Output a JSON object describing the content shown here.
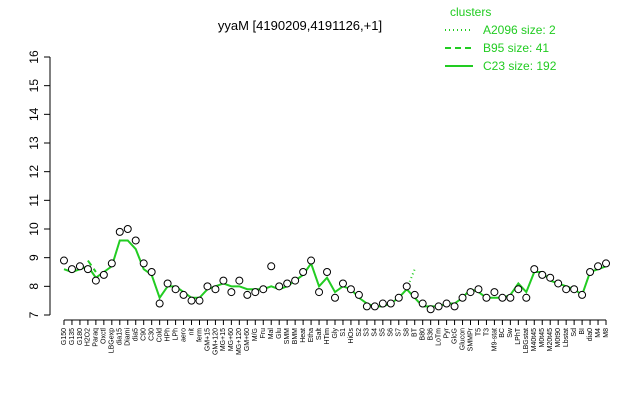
{
  "chart_data": {
    "type": "line",
    "title": "yyaM [4190209,4191126,+1]",
    "categories": [
      "G150",
      "G135",
      "G180",
      "H2O2",
      "Paraq",
      "Oxctl",
      "LBGexp",
      "dia15",
      "Diami",
      "dia5",
      "C90",
      "C30",
      "Cold",
      "HPh",
      "LPh",
      "aero",
      "nit",
      "ferm",
      "GM+15",
      "GM+120",
      "MG+15",
      "MG+60",
      "MG+120",
      "GM+60",
      "M/G",
      "Fru",
      "Mal",
      "Glu",
      "SMM",
      "BMM",
      "Heat",
      "Etha",
      "Salt",
      "HTim",
      "Gly",
      "S1",
      "HiOs",
      "S2",
      "S3",
      "S4",
      "S5",
      "S6",
      "S7",
      "S8",
      "BT",
      "B80",
      "B36",
      "LoTm",
      "Pyr",
      "GlcG",
      "Glucon",
      "SMMPr",
      "T5",
      "T3",
      "M9-stat",
      "BC",
      "Sw",
      "LPhT",
      "LBGstat",
      "M40t45",
      "M0t45",
      "M20t45",
      "M0t90",
      "Lbstat",
      "Sd",
      "BI",
      "dia0",
      "M4",
      "M8"
    ],
    "points": [
      8.9,
      8.6,
      8.7,
      8.6,
      8.2,
      8.4,
      8.8,
      9.9,
      10.0,
      9.6,
      8.8,
      8.5,
      7.4,
      8.1,
      7.9,
      7.7,
      7.5,
      7.5,
      8.0,
      7.9,
      8.2,
      7.8,
      8.2,
      7.7,
      7.8,
      7.9,
      8.7,
      8.0,
      8.1,
      8.2,
      8.5,
      8.9,
      7.8,
      8.5,
      7.6,
      8.1,
      7.9,
      7.7,
      7.3,
      7.3,
      7.4,
      7.4,
      7.6,
      8.0,
      7.7,
      7.4,
      7.2,
      7.3,
      7.4,
      7.3,
      7.6,
      7.8,
      7.9,
      7.6,
      7.8,
      7.6,
      7.6,
      7.9,
      7.6,
      8.6,
      8.4,
      8.3,
      8.1,
      7.9,
      7.9,
      7.7,
      8.5,
      8.7,
      8.8
    ],
    "series": [
      {
        "name": "A2096 size: 2",
        "color": "#22cc22",
        "dash": "1,3",
        "values": [
          null,
          null,
          null,
          null,
          null,
          null,
          null,
          null,
          null,
          null,
          null,
          null,
          null,
          null,
          null,
          null,
          null,
          null,
          null,
          null,
          null,
          null,
          null,
          null,
          null,
          null,
          null,
          null,
          null,
          null,
          null,
          null,
          null,
          null,
          null,
          null,
          null,
          null,
          null,
          null,
          null,
          null,
          null,
          7.9,
          8.6,
          null,
          null,
          null,
          null,
          null,
          null,
          null,
          null,
          null,
          null,
          null,
          null,
          null,
          null,
          null,
          null,
          null,
          null,
          null,
          null,
          null,
          null,
          null,
          null
        ]
      },
      {
        "name": "B95 size: 41",
        "color": "#22cc22",
        "dash": "6,4",
        "values": [
          null,
          null,
          null,
          8.9,
          8.5,
          null,
          null,
          null,
          null,
          null,
          null,
          null,
          null,
          null,
          null,
          null,
          null,
          null,
          null,
          null,
          null,
          null,
          null,
          null,
          null,
          null,
          null,
          null,
          null,
          null,
          null,
          null,
          null,
          null,
          null,
          null,
          null,
          null,
          null,
          null,
          null,
          null,
          null,
          null,
          null,
          null,
          null,
          null,
          null,
          null,
          null,
          null,
          null,
          null,
          null,
          null,
          null,
          null,
          null,
          null,
          null,
          null,
          null,
          null,
          null,
          null,
          null,
          null,
          null
        ]
      },
      {
        "name": "C23 size: 192",
        "color": "#22cc22",
        "dash": "none",
        "values": [
          8.6,
          8.5,
          8.6,
          8.7,
          8.3,
          8.5,
          8.7,
          9.6,
          9.6,
          9.3,
          8.6,
          8.4,
          7.6,
          8.0,
          8.0,
          7.8,
          7.6,
          7.6,
          7.9,
          8.0,
          8.1,
          8.0,
          8.0,
          7.9,
          7.9,
          7.9,
          8.0,
          7.9,
          8.0,
          8.2,
          8.4,
          8.8,
          8.0,
          8.3,
          7.8,
          8.0,
          7.9,
          7.6,
          7.4,
          7.3,
          7.3,
          7.4,
          7.6,
          7.9,
          7.6,
          7.3,
          7.3,
          7.3,
          7.4,
          7.4,
          7.6,
          7.9,
          7.8,
          7.6,
          7.6,
          7.6,
          7.7,
          8.1,
          7.8,
          8.5,
          8.5,
          8.2,
          8.1,
          8.0,
          7.9,
          7.7,
          8.5,
          8.6,
          8.7
        ]
      }
    ],
    "legend_title": "clusters",
    "legend": "topright",
    "ylim": [
      7,
      16
    ],
    "yticks": [
      7,
      8,
      9,
      10,
      11,
      12,
      13,
      14,
      15,
      16
    ]
  }
}
